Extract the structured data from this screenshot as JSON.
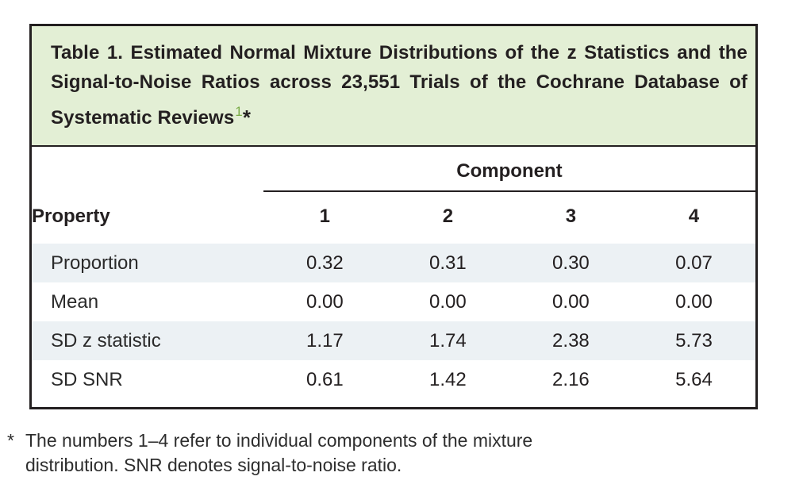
{
  "table": {
    "title": "Table 1. Estimated Normal Mixture Distributions of the z Statistics and the Signal-to-Noise Ratios across 23,551 Trials of the Cochrane Database of Systematic Reviews",
    "reference_mark": "1",
    "footnote_symbol": "*",
    "column_group_label": "Component",
    "property_header": "Property",
    "column_headers": [
      "1",
      "2",
      "3",
      "4"
    ],
    "rows": [
      {
        "label": "Proportion",
        "values": [
          "0.32",
          "0.31",
          "0.30",
          "0.07"
        ]
      },
      {
        "label": "Mean",
        "values": [
          "0.00",
          "0.00",
          "0.00",
          "0.00"
        ]
      },
      {
        "label": "SD z statistic",
        "values": [
          "1.17",
          "1.74",
          "2.38",
          "5.73"
        ]
      },
      {
        "label": "SD SNR",
        "values": [
          "0.61",
          "1.42",
          "2.16",
          "5.64"
        ]
      }
    ]
  },
  "footnote": {
    "marker": "*",
    "text": "The numbers 1–4 refer to individual components of the mixture distribution. SNR denotes signal-to-noise ratio."
  },
  "colors": {
    "title_background": "#e3efd5",
    "row_shading": "#ecf1f4",
    "border": "#231f20",
    "reference_green": "#79ab45"
  },
  "chart_data": {
    "type": "table",
    "title": "Table 1. Estimated Normal Mixture Distributions of the z Statistics and the Signal-to-Noise Ratios across 23,551 Trials of the Cochrane Database of Systematic Reviews",
    "column_group": "Component",
    "columns": [
      "Property",
      "1",
      "2",
      "3",
      "4"
    ],
    "rows": [
      [
        "Proportion",
        0.32,
        0.31,
        0.3,
        0.07
      ],
      [
        "Mean",
        0.0,
        0.0,
        0.0,
        0.0
      ],
      [
        "SD z statistic",
        1.17,
        1.74,
        2.38,
        5.73
      ],
      [
        "SD SNR",
        0.61,
        1.42,
        2.16,
        5.64
      ]
    ],
    "footnote": "* The numbers 1–4 refer to individual components of the mixture distribution. SNR denotes signal-to-noise ratio."
  }
}
